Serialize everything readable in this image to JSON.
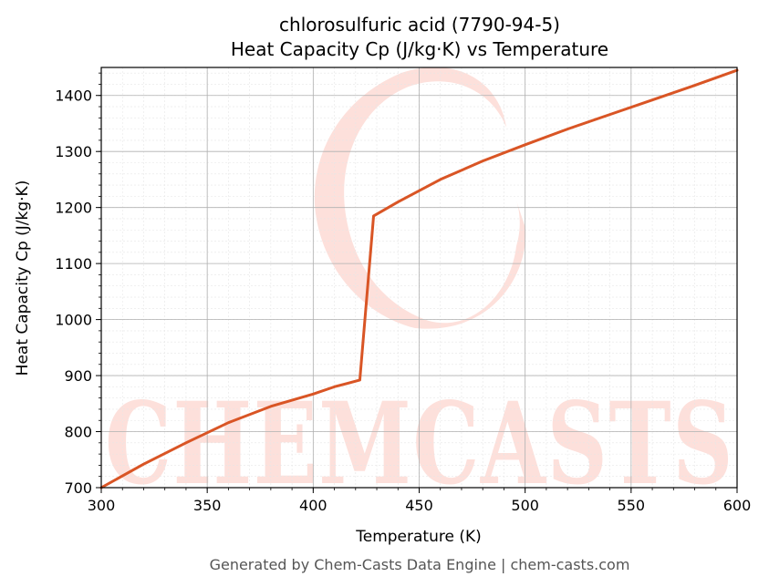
{
  "chart_data": {
    "type": "line",
    "title": "chlorosulfuric acid (7790-94-5)",
    "subtitle": "Heat Capacity Cp (J/kg·K) vs Temperature",
    "xlabel": "Temperature (K)",
    "ylabel": "Heat Capacity Cp (J/kg·K)",
    "xlim": [
      300,
      600
    ],
    "ylim": [
      700,
      1450
    ],
    "xticks": [
      300,
      350,
      400,
      450,
      500,
      550,
      600
    ],
    "yticks": [
      700,
      800,
      900,
      1000,
      1100,
      1200,
      1300,
      1400
    ],
    "grid": true,
    "legend": "none",
    "series": [
      {
        "color": "#d95525",
        "x": [
          300,
          320,
          340,
          360,
          380,
          400,
          410,
          422,
          428.5,
          440,
          460,
          480,
          500,
          520,
          540,
          560,
          580,
          600
        ],
        "y": [
          700,
          742,
          780,
          816,
          845,
          867,
          880,
          892,
          1185,
          1210,
          1250,
          1283,
          1312,
          1340,
          1366,
          1392,
          1418,
          1445
        ]
      }
    ]
  },
  "watermark": {
    "text": "CHEMCASTS",
    "color": "#fde0db"
  },
  "footer": "Generated by Chem-Casts Data Engine | chem-casts.com"
}
